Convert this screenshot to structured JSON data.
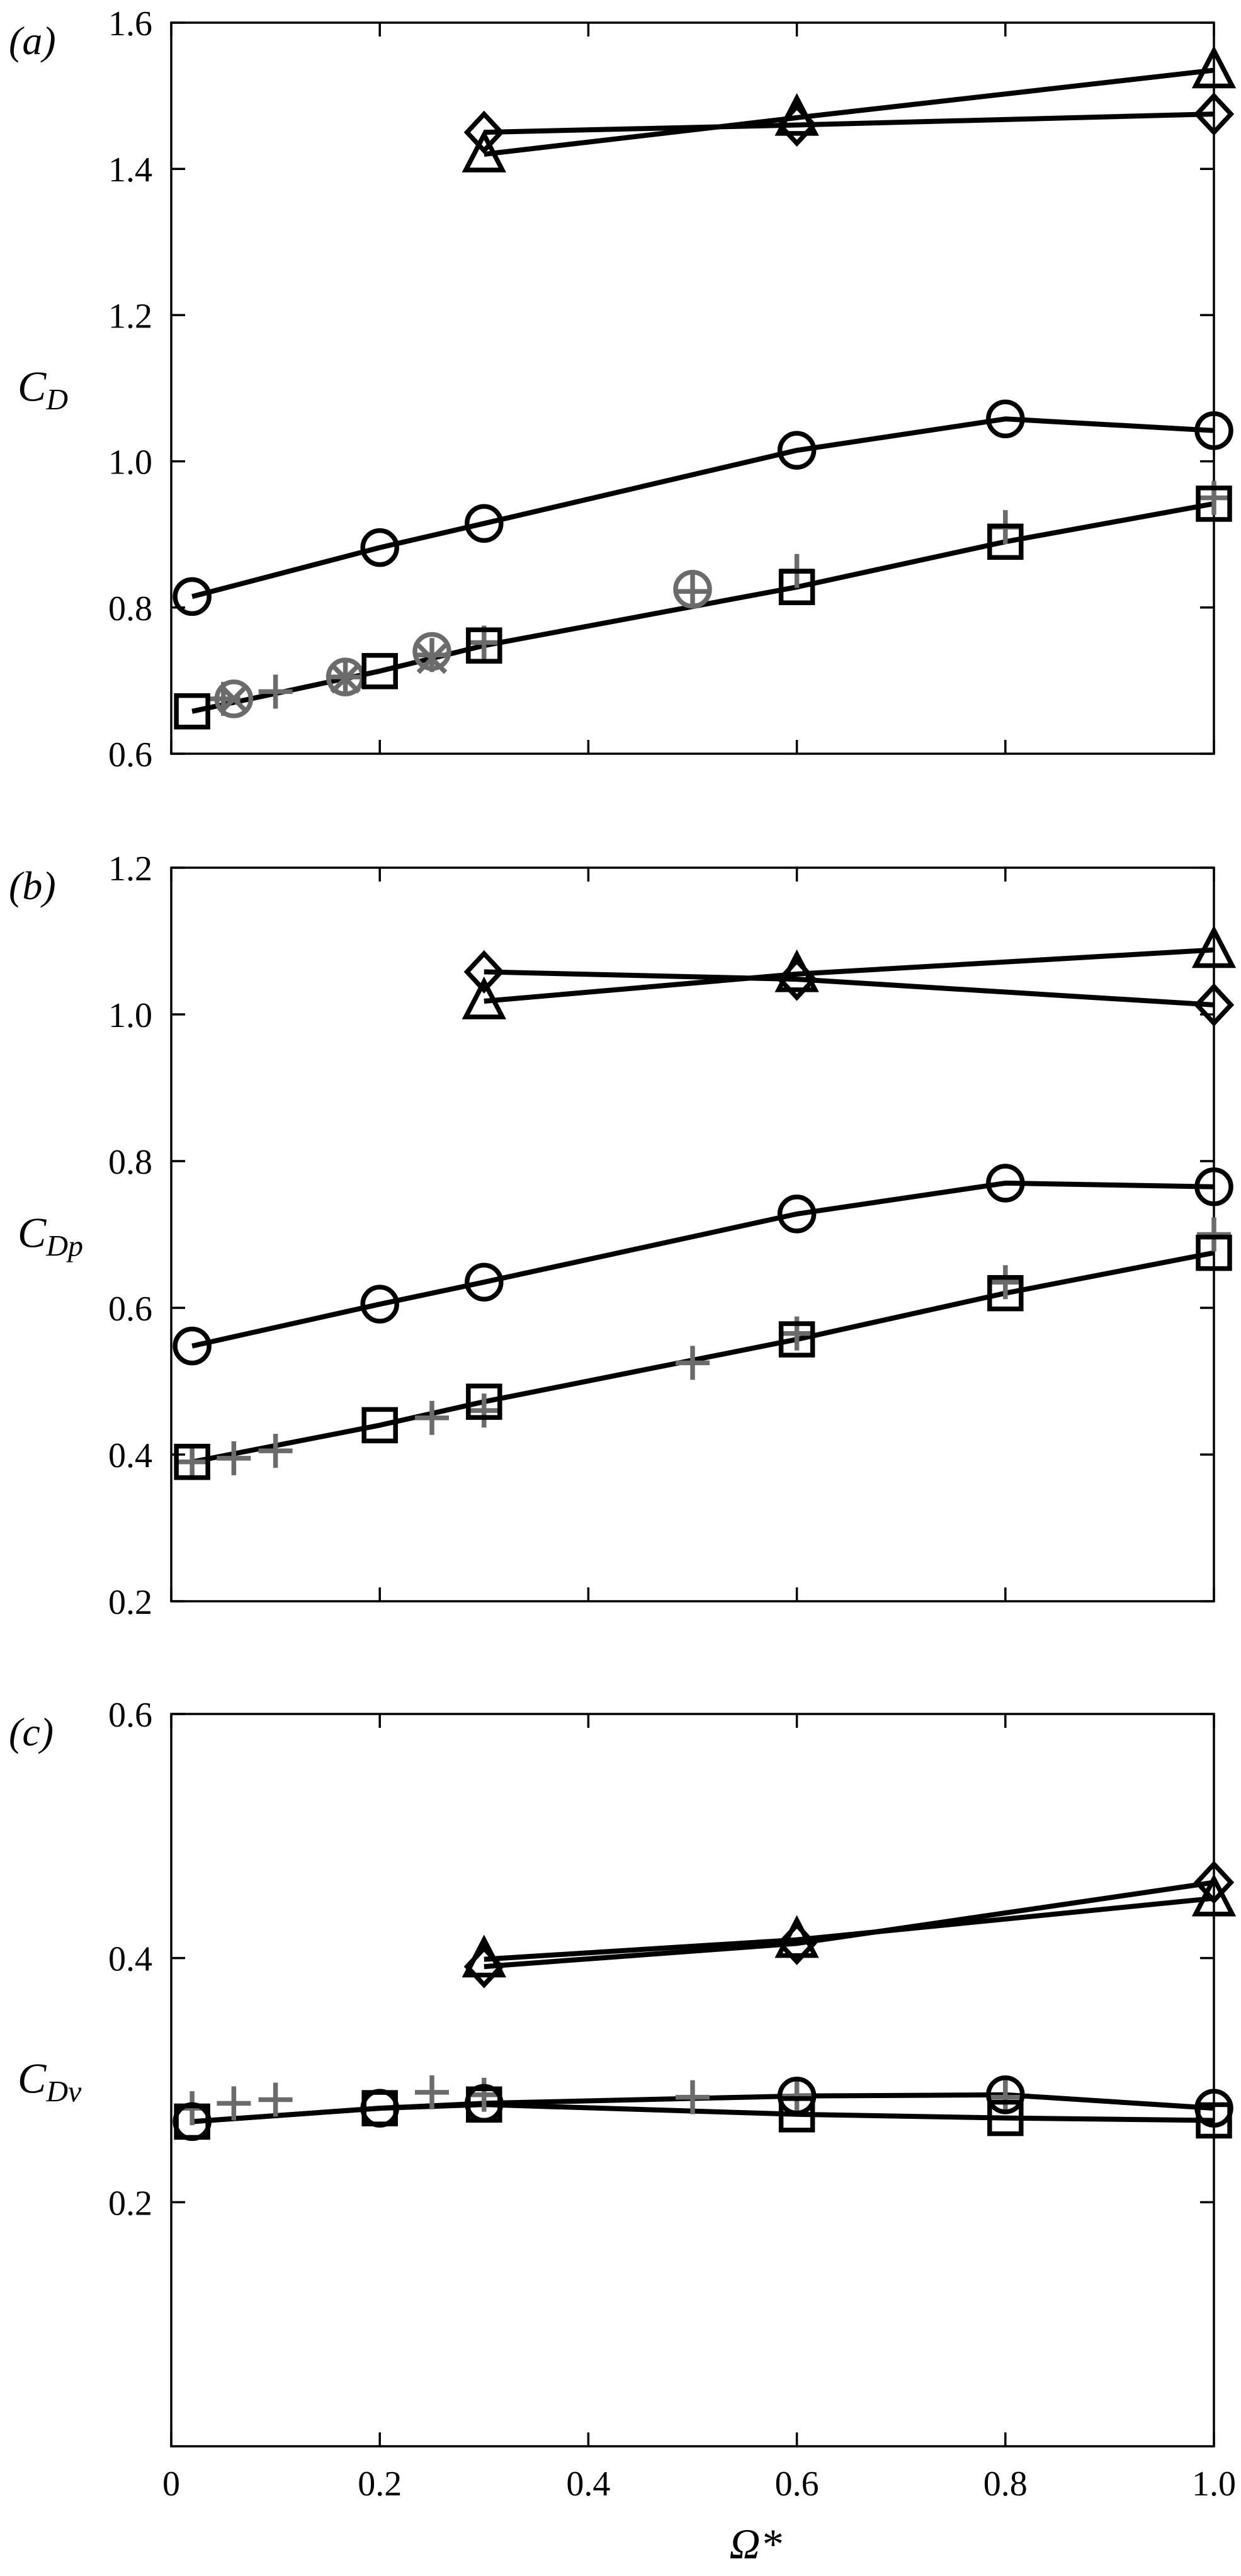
{
  "colors": {
    "model": "#000000",
    "reference": "#6b6b6b",
    "background": "#ffffff"
  },
  "chart_data": [
    {
      "type": "line",
      "panel_label": "(a)",
      "ylabel": "C",
      "ylabel_sub": "D",
      "xlabel": "",
      "xlim": [
        0,
        1.0
      ],
      "ylim": [
        0.6,
        1.6
      ],
      "xticks": [
        0,
        0.2,
        0.4,
        0.6,
        0.8,
        1.0
      ],
      "xtick_labels": [
        "",
        "",
        "",
        "",
        "",
        ""
      ],
      "yticks": [
        0.6,
        0.8,
        1.0,
        1.2,
        1.4,
        1.6
      ],
      "ytick_labels": [
        "0.6",
        "0.8",
        "1.0",
        "1.2",
        "1.4",
        "1.6"
      ],
      "series": [
        {
          "marker": "diamond",
          "color": "#000000",
          "line": true,
          "x": [
            0.3,
            0.6,
            1.0
          ],
          "y": [
            1.45,
            1.46,
            1.475
          ]
        },
        {
          "marker": "triangle",
          "color": "#000000",
          "line": true,
          "x": [
            0.3,
            0.6,
            1.0
          ],
          "y": [
            1.42,
            1.47,
            1.535
          ]
        },
        {
          "marker": "circle",
          "color": "#000000",
          "line": true,
          "x": [
            0.02,
            0.2,
            0.3,
            0.6,
            0.8,
            1.0
          ],
          "y": [
            0.815,
            0.882,
            0.915,
            1.015,
            1.058,
            1.042
          ]
        },
        {
          "marker": "square",
          "color": "#000000",
          "line": true,
          "x": [
            0.02,
            0.2,
            0.3,
            0.6,
            0.8,
            1.0
          ],
          "y": [
            0.658,
            0.713,
            0.748,
            0.828,
            0.89,
            0.942
          ]
        },
        {
          "marker": "plus",
          "color": "#6b6b6b",
          "line": false,
          "x": [
            0.05,
            0.1,
            0.167,
            0.25,
            0.3,
            0.5,
            0.6,
            0.8,
            1.0
          ],
          "y": [
            0.675,
            0.685,
            0.705,
            0.735,
            0.752,
            0.822,
            0.85,
            0.91,
            0.95
          ]
        },
        {
          "marker": "circle",
          "color": "#6b6b6b",
          "line": false,
          "x": [
            0.06,
            0.167,
            0.25,
            0.5
          ],
          "y": [
            0.675,
            0.705,
            0.74,
            0.825
          ]
        },
        {
          "marker": "cross",
          "color": "#6b6b6b",
          "line": false,
          "x": [
            0.06,
            0.167,
            0.25
          ],
          "y": [
            0.675,
            0.703,
            0.73
          ]
        }
      ]
    },
    {
      "type": "line",
      "panel_label": "(b)",
      "ylabel": "C",
      "ylabel_sub": "Dp",
      "xlabel": "",
      "xlim": [
        0,
        1.0
      ],
      "ylim": [
        0.2,
        1.2
      ],
      "xticks": [
        0,
        0.2,
        0.4,
        0.6,
        0.8,
        1.0
      ],
      "xtick_labels": [
        "",
        "",
        "",
        "",
        "",
        ""
      ],
      "yticks": [
        0.2,
        0.4,
        0.6,
        0.8,
        1.0,
        1.2
      ],
      "ytick_labels": [
        "0.2",
        "0.4",
        "0.6",
        "0.8",
        "1.0",
        "1.2"
      ],
      "series": [
        {
          "marker": "diamond",
          "color": "#000000",
          "line": true,
          "x": [
            0.3,
            0.6,
            1.0
          ],
          "y": [
            1.058,
            1.048,
            1.013
          ]
        },
        {
          "marker": "triangle",
          "color": "#000000",
          "line": true,
          "x": [
            0.3,
            0.6,
            1.0
          ],
          "y": [
            1.018,
            1.055,
            1.088
          ]
        },
        {
          "marker": "circle",
          "color": "#000000",
          "line": true,
          "x": [
            0.02,
            0.2,
            0.3,
            0.6,
            0.8,
            1.0
          ],
          "y": [
            0.548,
            0.605,
            0.635,
            0.728,
            0.77,
            0.765
          ]
        },
        {
          "marker": "square",
          "color": "#000000",
          "line": true,
          "x": [
            0.02,
            0.2,
            0.3,
            0.6,
            0.8,
            1.0
          ],
          "y": [
            0.39,
            0.44,
            0.472,
            0.557,
            0.62,
            0.675
          ]
        },
        {
          "marker": "plus",
          "color": "#6b6b6b",
          "line": false,
          "x": [
            0.02,
            0.06,
            0.1,
            0.25,
            0.3,
            0.5,
            0.6,
            0.8,
            1.0
          ],
          "y": [
            0.39,
            0.395,
            0.405,
            0.45,
            0.46,
            0.525,
            0.565,
            0.635,
            0.7
          ]
        }
      ]
    },
    {
      "type": "line",
      "panel_label": "(c)",
      "ylabel": "C",
      "ylabel_sub": "Dv",
      "xlabel": "Ω*",
      "xlim": [
        0,
        1.0
      ],
      "ylim": [
        0.0,
        0.6
      ],
      "xticks": [
        0,
        0.2,
        0.4,
        0.6,
        0.8,
        1.0
      ],
      "xtick_labels": [
        "0",
        "0.2",
        "0.4",
        "0.6",
        "0.8",
        "1.0"
      ],
      "yticks": [
        0.2,
        0.4,
        0.6
      ],
      "ytick_labels": [
        "0.2",
        "0.4",
        "0.6"
      ],
      "series": [
        {
          "marker": "diamond",
          "color": "#000000",
          "line": true,
          "x": [
            0.3,
            0.6,
            1.0
          ],
          "y": [
            0.393,
            0.412,
            0.462
          ]
        },
        {
          "marker": "triangle",
          "color": "#000000",
          "line": true,
          "x": [
            0.3,
            0.6,
            1.0
          ],
          "y": [
            0.399,
            0.415,
            0.449
          ]
        },
        {
          "marker": "circle",
          "color": "#000000",
          "line": true,
          "x": [
            0.02,
            0.2,
            0.3,
            0.6,
            0.8,
            1.0
          ],
          "y": [
            0.266,
            0.277,
            0.281,
            0.287,
            0.288,
            0.277
          ]
        },
        {
          "marker": "square",
          "color": "#000000",
          "line": true,
          "x": [
            0.02,
            0.2,
            0.3,
            0.6,
            0.8,
            1.0
          ],
          "y": [
            0.266,
            0.277,
            0.28,
            0.272,
            0.269,
            0.267
          ]
        },
        {
          "marker": "plus",
          "color": "#6b6b6b",
          "line": false,
          "x": [
            0.02,
            0.06,
            0.1,
            0.25,
            0.3,
            0.5,
            0.6,
            0.8
          ],
          "y": [
            0.277,
            0.281,
            0.284,
            0.29,
            0.288,
            0.286,
            0.287,
            0.286
          ]
        }
      ]
    }
  ]
}
